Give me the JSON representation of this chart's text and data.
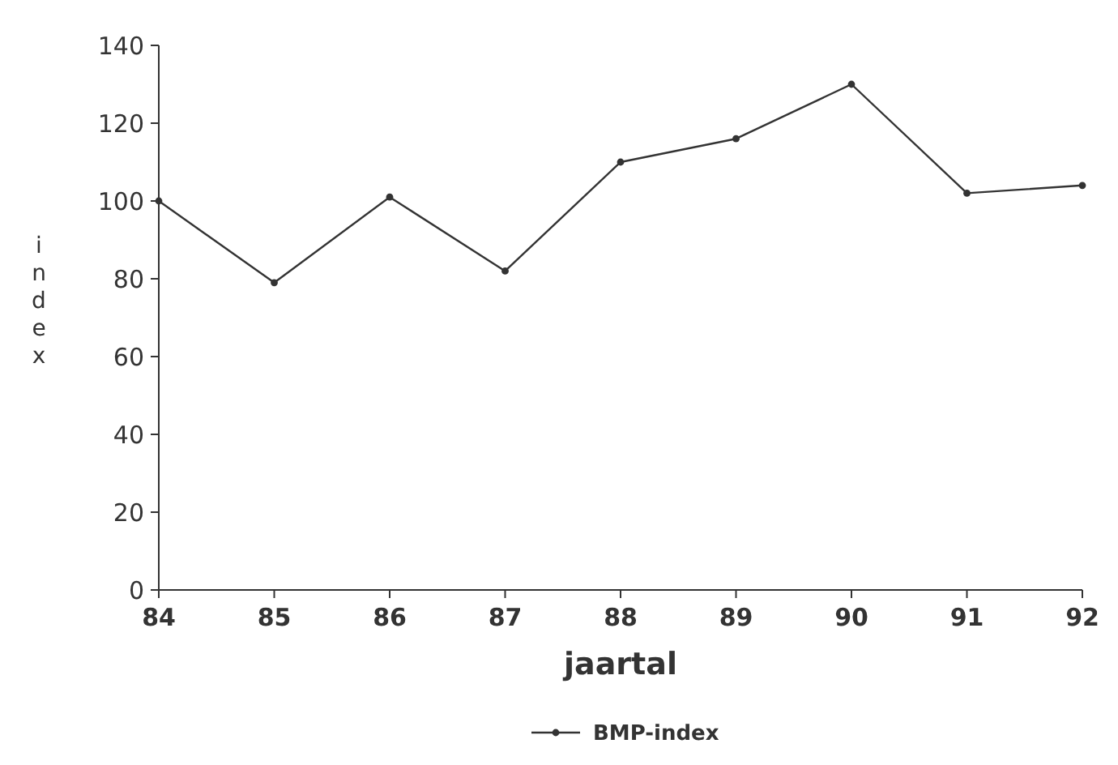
{
  "chart_data": {
    "type": "line",
    "xlabel": "jaartal",
    "ylabel": "index",
    "x": [
      84,
      85,
      86,
      87,
      88,
      89,
      90,
      91,
      92
    ],
    "series": [
      {
        "name": "BMP-index",
        "color": "#333333",
        "values": [
          100,
          79,
          101,
          82,
          110,
          116,
          130,
          102,
          104
        ]
      }
    ],
    "xlim": [
      84,
      92
    ],
    "xticks": [
      84,
      85,
      86,
      87,
      88,
      89,
      90,
      91,
      92
    ],
    "ylim": [
      0,
      140
    ],
    "yticks": [
      0,
      20,
      40,
      60,
      80,
      100,
      120,
      140
    ],
    "grid": false,
    "legend": "bottom",
    "marker": "circle",
    "line_style": "solid"
  }
}
